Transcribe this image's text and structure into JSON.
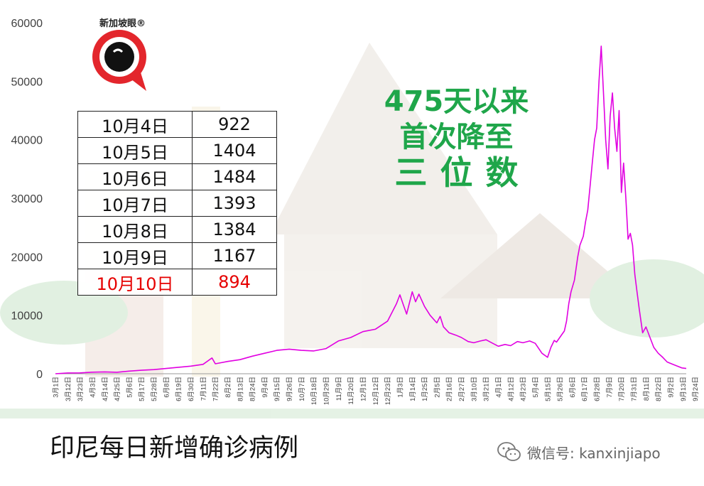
{
  "logo": {
    "text": "新加坡眼®"
  },
  "table": {
    "rows": [
      {
        "date": "10月4日",
        "value": "922",
        "highlight": false
      },
      {
        "date": "10月5日",
        "value": "1404",
        "highlight": false
      },
      {
        "date": "10月6日",
        "value": "1484",
        "highlight": false
      },
      {
        "date": "10月7日",
        "value": "1393",
        "highlight": false
      },
      {
        "date": "10月8日",
        "value": "1384",
        "highlight": false
      },
      {
        "date": "10月9日",
        "value": "1167",
        "highlight": false
      },
      {
        "date": "10月10日",
        "value": "894",
        "highlight": true
      }
    ]
  },
  "headline": {
    "line1": "475天以来",
    "line2": "首次降至",
    "line3": "三位数",
    "color": "#1fa64a"
  },
  "caption": "印尼每日新增确诊病例",
  "watermark": "微信号: kanxinjiapo",
  "chart_data": {
    "type": "line",
    "title": "",
    "xlabel": "",
    "ylabel": "",
    "ylim": [
      0,
      60000
    ],
    "yticks": [
      0,
      10000,
      20000,
      30000,
      40000,
      50000,
      60000
    ],
    "grid": false,
    "line_color": "#e100e1",
    "xtick_labels": [
      "3月1日",
      "3月12日",
      "3月23日",
      "4月3日",
      "4月14日",
      "4月25日",
      "5月6日",
      "5月17日",
      "5月28日",
      "6月8日",
      "6月19日",
      "6月30日",
      "7月11日",
      "7月22日",
      "8月2日",
      "8月13日",
      "8月24日",
      "9月4日",
      "9月15日",
      "9月26日",
      "10月7日",
      "10月18日",
      "10月29日",
      "11月9日",
      "11月20日",
      "12月1日",
      "12月12日",
      "12月23日",
      "1月3日",
      "1月14日",
      "1月25日",
      "2月5日",
      "2月16日",
      "2月27日",
      "3月10日",
      "3月21日",
      "4月1日",
      "4月12日",
      "4月23日",
      "5月4日",
      "5月15日",
      "5月26日",
      "6月6日",
      "6月17日",
      "6月28日",
      "7月9日",
      "7月20日",
      "7月31日",
      "8月11日",
      "8月22日",
      "9月2日",
      "9月13日",
      "9月24日",
      "10月5日"
    ],
    "series": [
      {
        "x": [
          0,
          11,
          22,
          33,
          44,
          55,
          66,
          77,
          88,
          99,
          110,
          121,
          132,
          140,
          143,
          154,
          165,
          176,
          187,
          198,
          209,
          220,
          231,
          242,
          253,
          264,
          275,
          286,
          297,
          305,
          308,
          311,
          314,
          319,
          322,
          325,
          330,
          335,
          341,
          344,
          347,
          352,
          358,
          363,
          369,
          374,
          380,
          385,
          391,
          396,
          402,
          407,
          413,
          418,
          424,
          429,
          435,
          440,
          443,
          446,
          448,
          452,
          455,
          457,
          459,
          461,
          464,
          467,
          469,
          472,
          474,
          476,
          478,
          480,
          482,
          484,
          486,
          488,
          490,
          492,
          494,
          496,
          498,
          500,
          502,
          504,
          506,
          508,
          510,
          512,
          514,
          516,
          518,
          520,
          522,
          525,
          528,
          532,
          535,
          539,
          543,
          547,
          552,
          556,
          560,
          564
        ],
        "y": [
          2,
          130,
          140,
          270,
          320,
          260,
          450,
          600,
          700,
          900,
          1100,
          1300,
          1600,
          2700,
          1700,
          2100,
          2400,
          3000,
          3500,
          4000,
          4200,
          4000,
          3900,
          4300,
          5600,
          6200,
          7200,
          7600,
          9000,
          12000,
          13500,
          11800,
          10200,
          14000,
          12300,
          13600,
          11500,
          10000,
          8700,
          9800,
          8000,
          7000,
          6600,
          6200,
          5500,
          5300,
          5600,
          5800,
          5200,
          4700,
          5000,
          4800,
          5500,
          5300,
          5600,
          5200,
          3500,
          2800,
          4500,
          5700,
          5400,
          6500,
          7300,
          9000,
          12000,
          14000,
          16000,
          20000,
          22000,
          23500,
          26000,
          28000,
          32000,
          36000,
          40000,
          42000,
          50000,
          56000,
          48000,
          40000,
          35000,
          44000,
          48000,
          42000,
          38000,
          45000,
          31000,
          36000,
          30000,
          23000,
          24000,
          22000,
          17000,
          14000,
          11000,
          7000,
          8000,
          6000,
          4500,
          3500,
          2800,
          2000,
          1600,
          1300,
          1000,
          894
        ]
      }
    ]
  }
}
